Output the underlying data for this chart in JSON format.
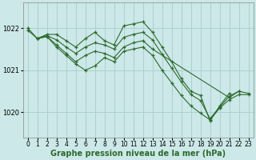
{
  "bg_color": "#cce8e8",
  "grid_color": "#aacccc",
  "line_color": "#2d6a2d",
  "xlabel": "Graphe pression niveau de la mer (hPa)",
  "xlabel_fontsize": 7.0,
  "tick_fontsize": 5.5,
  "ytick_fontsize": 6.0,
  "ylim": [
    1019.4,
    1022.6
  ],
  "xlim": [
    -0.5,
    23.5
  ],
  "yticks": [
    1020,
    1021,
    1022
  ],
  "xticks": [
    0,
    1,
    2,
    3,
    4,
    5,
    6,
    7,
    8,
    9,
    10,
    11,
    12,
    13,
    14,
    15,
    16,
    17,
    18,
    19,
    20,
    21,
    22,
    23
  ],
  "series": [
    {
      "x": [
        0,
        1,
        2,
        3,
        4,
        5,
        6,
        7,
        8,
        9,
        10,
        11,
        12,
        13,
        14,
        15,
        16,
        17,
        18,
        19,
        20,
        21
      ],
      "y": [
        1022.0,
        1021.75,
        1021.85,
        1021.85,
        1021.7,
        1021.55,
        1021.75,
        1021.9,
        1021.7,
        1021.6,
        1022.05,
        1022.1,
        1022.15,
        1021.9,
        1021.55,
        1021.2,
        1020.8,
        1020.5,
        1020.4,
        1019.8,
        1020.15,
        1020.45
      ]
    },
    {
      "x": [
        1,
        2,
        3,
        4,
        5,
        6,
        7,
        8,
        9,
        10,
        11,
        12,
        13,
        14,
        15,
        16,
        17,
        18,
        19,
        20,
        21,
        22
      ],
      "y": [
        1021.75,
        1021.82,
        1021.72,
        1021.55,
        1021.4,
        1021.55,
        1021.65,
        1021.6,
        1021.5,
        1021.78,
        1021.85,
        1021.9,
        1021.72,
        1021.38,
        1021.05,
        1020.72,
        1020.42,
        1020.28,
        1019.85,
        1020.12,
        1020.38,
        1020.5
      ]
    },
    {
      "x": [
        1,
        2,
        3,
        4,
        5,
        6,
        7,
        8,
        9,
        10,
        11,
        12,
        13,
        21,
        22,
        23
      ],
      "y": [
        1021.75,
        1021.8,
        1021.6,
        1021.4,
        1021.2,
        1021.35,
        1021.45,
        1021.4,
        1021.3,
        1021.55,
        1021.65,
        1021.7,
        1021.5,
        1020.35,
        1020.5,
        1020.45
      ]
    },
    {
      "x": [
        0,
        1,
        2,
        3,
        4,
        5,
        6,
        7,
        8,
        9,
        10,
        11,
        12,
        13,
        14,
        15,
        16,
        17,
        18,
        19,
        20,
        21,
        22,
        23
      ],
      "y": [
        1021.95,
        1021.75,
        1021.8,
        1021.55,
        1021.35,
        1021.15,
        1021.0,
        1021.1,
        1021.3,
        1021.2,
        1021.45,
        1021.5,
        1021.55,
        1021.35,
        1021.0,
        1020.7,
        1020.4,
        1020.15,
        1019.98,
        1019.82,
        1020.1,
        1020.3,
        1020.42,
        1020.42
      ]
    }
  ]
}
